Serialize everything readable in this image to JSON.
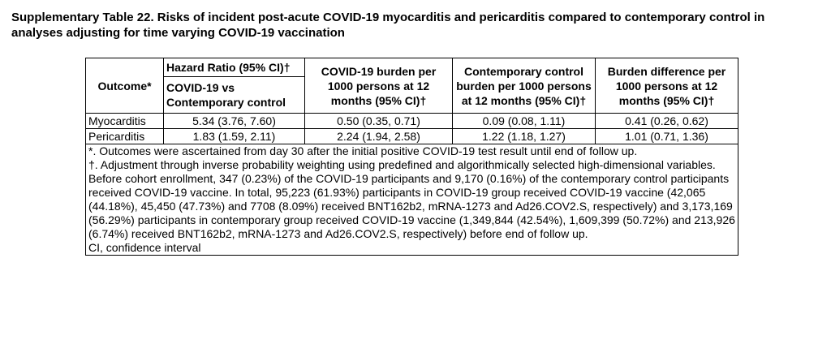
{
  "title": "Supplementary Table 22. Risks of incident post-acute COVID-19 myocarditis and pericarditis compared to contemporary control in analyses adjusting for time varying COVID-19 vaccination",
  "table": {
    "outcome_header": "Outcome*",
    "hr_header": "Hazard Ratio (95% CI)†",
    "hr_subheader": "COVID-19 vs Contemporary control",
    "covid_burden_header": "COVID-19 burden per 1000 persons at 12 months (95% CI)†",
    "control_burden_header": "Contemporary control burden per 1000 persons at 12 months (95% CI)†",
    "difference_header": "Burden difference per 1000 persons at 12 months (95% CI)†",
    "rows": [
      {
        "outcome": "Myocarditis",
        "hr": "5.34 (3.76, 7.60)",
        "covid_burden": "0.50 (0.35, 0.71)",
        "control_burden": "0.09 (0.08, 1.11)",
        "difference": "0.41 (0.26, 0.62)"
      },
      {
        "outcome": "Pericarditis",
        "hr": "1.83 (1.59, 2.11)",
        "covid_burden": "2.24 (1.94, 2.58)",
        "control_burden": "1.22 (1.18, 1.27)",
        "difference": "1.01 (0.71, 1.36)"
      }
    ]
  },
  "footnotes": {
    "outcomes": "*. Outcomes were ascertained from day 30 after the initial positive COVID-19 test result until end of follow up.",
    "adjustment": "†. Adjustment through inverse probability weighting using predefined and algorithmically selected high-dimensional variables.",
    "vaccination": "Before cohort enrollment, 347 (0.23%) of the COVID-19 participants and 9,170 (0.16%) of the contemporary control participants received COVID-19 vaccine. In total, 95,223 (61.93%) participants in COVID-19 group received COVID-19 vaccine (42,065 (44.18%), 45,450 (47.73%) and 7708 (8.09%) received BNT162b2, mRNA-1273 and Ad26.COV2.S, respectively) and 3,173,169 (56.29%) participants in contemporary group received COVID-19 vaccine (1,349,844 (42.54%), 1,609,399 (50.72%) and 213,926 (6.74%) received BNT162b2, mRNA-1273 and Ad26.COV2.S, respectively) before end of follow up.",
    "ci": "CI, confidence interval"
  }
}
